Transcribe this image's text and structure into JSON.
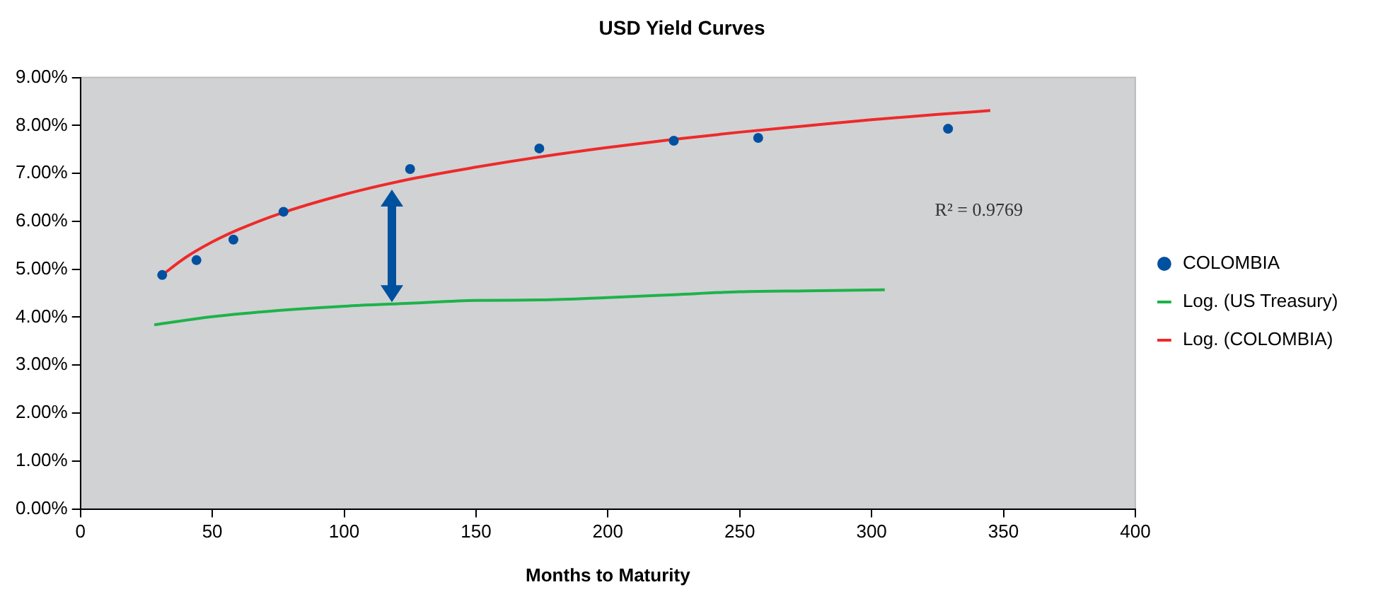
{
  "chart_data": {
    "type": "scatter",
    "title": "USD Yield Curves",
    "xlabel": "Months to Maturity",
    "series": [
      {
        "name": "COLOMBIA",
        "marker": "circle",
        "color": "#0050a0",
        "x": [
          31,
          44,
          58,
          77,
          125,
          174,
          225,
          257,
          329
        ],
        "values": [
          4.88,
          5.19,
          5.62,
          6.2,
          7.09,
          7.52,
          7.68,
          7.74,
          7.93
        ]
      },
      {
        "name": "Log. (US Treasury)",
        "type": "line",
        "marker": "none",
        "line_style": "solid",
        "color": "#1db34a",
        "x": [
          28,
          50,
          75,
          100,
          125,
          150,
          175,
          200,
          225,
          250,
          275,
          305
        ],
        "values": [
          3.84,
          4.01,
          4.14,
          4.23,
          4.29,
          4.35,
          4.36,
          4.41,
          4.47,
          4.53,
          4.55,
          4.57
        ]
      },
      {
        "name": "Log. (COLOMBIA)",
        "type": "line",
        "marker": "none",
        "line_style": "solid",
        "color": "#ee2a2a",
        "x": [
          31,
          40,
          50,
          60,
          75,
          100,
          125,
          150,
          175,
          200,
          225,
          250,
          275,
          300,
          325,
          345
        ],
        "values": [
          4.88,
          5.25,
          5.57,
          5.83,
          6.15,
          6.56,
          6.88,
          7.13,
          7.35,
          7.54,
          7.71,
          7.86,
          7.99,
          8.12,
          8.23,
          8.31
        ]
      }
    ],
    "xlim": [
      0,
      400
    ],
    "xticks": [
      0,
      50,
      100,
      150,
      200,
      250,
      300,
      350,
      400
    ],
    "ylim": [
      0,
      9
    ],
    "yticks": [
      {
        "value": 0,
        "label": "0.00%"
      },
      {
        "value": 1,
        "label": "1.00%"
      },
      {
        "value": 2,
        "label": "2.00%"
      },
      {
        "value": 3,
        "label": "3.00%"
      },
      {
        "value": 4,
        "label": "4.00%"
      },
      {
        "value": 5,
        "label": "5.00%"
      },
      {
        "value": 6,
        "label": "6.00%"
      },
      {
        "value": 7,
        "label": "7.00%"
      },
      {
        "value": 8,
        "label": "8.00%"
      },
      {
        "value": 9,
        "label": "9.00%"
      }
    ],
    "legend": "right",
    "annotations": [
      "R² = 0.9769"
    ]
  }
}
